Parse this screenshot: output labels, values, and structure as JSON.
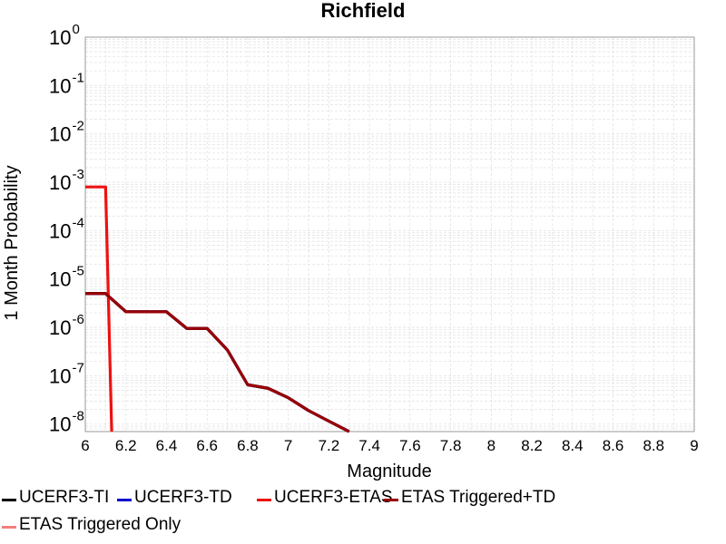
{
  "chart_data": {
    "type": "line",
    "title": "Richfield",
    "xlabel": "Magnitude",
    "ylabel": "1 Month Probability",
    "xlim": [
      6,
      9
    ],
    "ylim": [
      7e-09,
      1
    ],
    "yscale": "log",
    "grid": true,
    "legend_placement": "bottom",
    "x_ticks": [
      "6",
      "6.2",
      "6.4",
      "6.6",
      "6.8",
      "7",
      "7.2",
      "7.4",
      "7.6",
      "7.8",
      "8",
      "8.2",
      "8.4",
      "8.6",
      "8.8",
      "9"
    ],
    "y_ticks": [
      {
        "base": "10",
        "exp": "0"
      },
      {
        "base": "10",
        "exp": "-1"
      },
      {
        "base": "10",
        "exp": "-2"
      },
      {
        "base": "10",
        "exp": "-3"
      },
      {
        "base": "10",
        "exp": "-4"
      },
      {
        "base": "10",
        "exp": "-5"
      },
      {
        "base": "10",
        "exp": "-6"
      },
      {
        "base": "10",
        "exp": "-7"
      },
      {
        "base": "10",
        "exp": "-8"
      }
    ],
    "series": [
      {
        "name": "UCERF3-TI",
        "color": "#000000",
        "points": [
          [
            6.0,
            5e-06
          ],
          [
            6.1,
            5e-06
          ],
          [
            6.2,
            2.1e-06
          ],
          [
            6.3,
            2.1e-06
          ],
          [
            6.4,
            2.1e-06
          ],
          [
            6.5,
            9.5e-07
          ],
          [
            6.6,
            9.5e-07
          ],
          [
            6.7,
            3.4e-07
          ],
          [
            6.8,
            6.5e-08
          ],
          [
            6.9,
            5.5e-08
          ],
          [
            7.0,
            3.5e-08
          ],
          [
            7.1,
            1.9e-08
          ],
          [
            7.2,
            1.15e-08
          ],
          [
            7.3,
            6.5e-09
          ]
        ]
      },
      {
        "name": "UCERF3-TD",
        "color": "#0000cc",
        "points": [
          [
            6.0,
            5e-06
          ],
          [
            6.1,
            5e-06
          ],
          [
            6.2,
            2.1e-06
          ],
          [
            6.3,
            2.1e-06
          ],
          [
            6.4,
            2.1e-06
          ],
          [
            6.5,
            9.5e-07
          ],
          [
            6.6,
            9.5e-07
          ],
          [
            6.7,
            3.4e-07
          ],
          [
            6.8,
            6.5e-08
          ],
          [
            6.9,
            5.5e-08
          ],
          [
            7.0,
            3.5e-08
          ],
          [
            7.1,
            1.9e-08
          ],
          [
            7.2,
            1.15e-08
          ],
          [
            7.3,
            6.5e-09
          ]
        ]
      },
      {
        "name": "UCERF3-ETAS",
        "color": "#ee1111",
        "points": [
          [
            6.0,
            0.0008
          ],
          [
            6.1,
            0.0008
          ],
          [
            6.13,
            5e-09
          ]
        ]
      },
      {
        "name": "ETAS Triggered+TD",
        "color": "#990000",
        "points": [
          [
            6.0,
            5e-06
          ],
          [
            6.1,
            5e-06
          ],
          [
            6.2,
            2.1e-06
          ],
          [
            6.3,
            2.1e-06
          ],
          [
            6.4,
            2.1e-06
          ],
          [
            6.5,
            9.5e-07
          ],
          [
            6.6,
            9.5e-07
          ],
          [
            6.7,
            3.4e-07
          ],
          [
            6.8,
            6.5e-08
          ],
          [
            6.9,
            5.5e-08
          ],
          [
            7.0,
            3.5e-08
          ],
          [
            7.1,
            1.9e-08
          ],
          [
            7.2,
            1.15e-08
          ],
          [
            7.3,
            6.5e-09
          ]
        ]
      },
      {
        "name": "ETAS Triggered Only",
        "color": "#f08080",
        "points": []
      }
    ]
  }
}
